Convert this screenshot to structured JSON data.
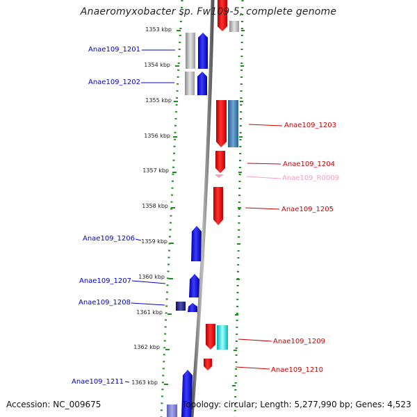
{
  "header": {
    "title": "Anaeromyxobacter sp. Fw109-5, complete genome"
  },
  "footer": {
    "accession": "Accession: NC_009675",
    "summary": "Topology: circular; Length: 5,277,990 bp; Genes: 4,523"
  },
  "colors": {
    "forward_gene": "#0a0ae6",
    "reverse_gene": "#e60f0f",
    "pseudo_gray": "#b4b4b4",
    "rna_pink": "#f0a0c8",
    "steel_blue": "#4682b4",
    "cyan": "#00e5e5",
    "navy": "#20207a",
    "backbone": "#7a7a7a",
    "track_dots": "#1e8c1e",
    "left_labels": "#0000cc",
    "right_labels": "#cc0000"
  },
  "ruler": {
    "unit": "kbp",
    "ticks": [
      {
        "label": "1353 kbp"
      },
      {
        "label": "1354 kbp"
      },
      {
        "label": "1355 kbp"
      },
      {
        "label": "1356 kbp"
      },
      {
        "label": "1357 kbp"
      },
      {
        "label": "1358 kbp"
      },
      {
        "label": "1359 kbp"
      },
      {
        "label": "1360 kbp"
      },
      {
        "label": "1361 kbp"
      },
      {
        "label": "1362 kbp"
      },
      {
        "label": "1363 kbp"
      }
    ]
  },
  "genes_left": [
    {
      "label": "Anae109_1201"
    },
    {
      "label": "Anae109_1202"
    },
    {
      "label": "Anae109_1206"
    },
    {
      "label": "Anae109_1207"
    },
    {
      "label": "Anae109_1208"
    },
    {
      "label": "Anae109_1211"
    }
  ],
  "genes_right": [
    {
      "label": "Anae109_1203"
    },
    {
      "label": "Anae109_1204"
    },
    {
      "label": "Anae109_R0009"
    },
    {
      "label": "Anae109_1205"
    },
    {
      "label": "Anae109_1209"
    },
    {
      "label": "Anae109_1210"
    }
  ]
}
